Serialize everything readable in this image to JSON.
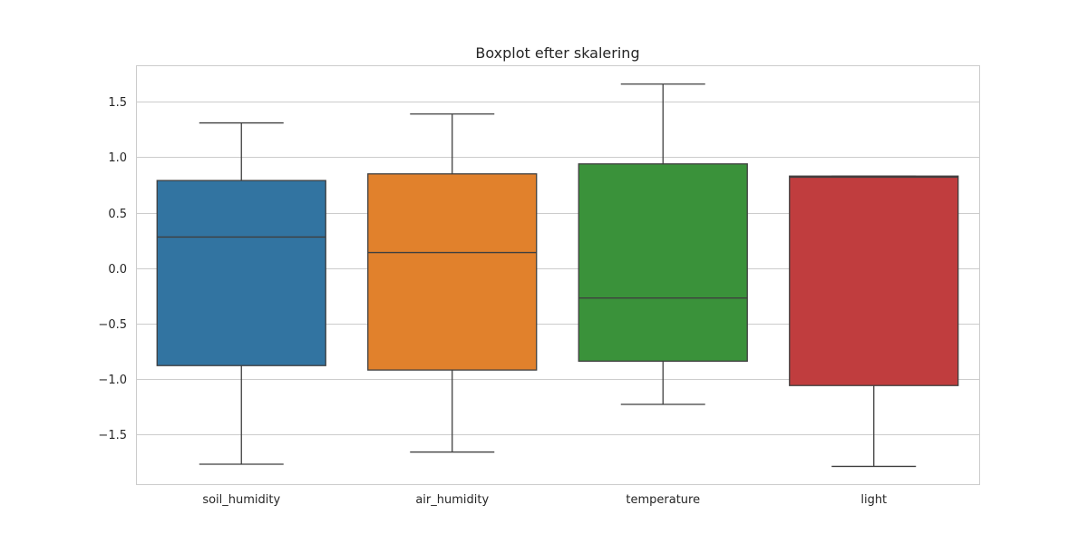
{
  "chart_data": {
    "type": "boxplot",
    "title": "Boxplot efter skalering",
    "xlabel": "",
    "ylabel": "",
    "ylim": [
      -1.95,
      1.83
    ],
    "yticks": [
      1.5,
      1.0,
      0.5,
      0.0,
      -0.5,
      -1.0,
      -1.5
    ],
    "ytick_labels": [
      "1.5",
      "1.0",
      "0.5",
      "0.0",
      "−0.5",
      "−1.0",
      "−1.5"
    ],
    "grid": true,
    "categories": [
      "soil_humidity",
      "air_humidity",
      "temperature",
      "light"
    ],
    "colors": [
      "#3274a1",
      "#e1812c",
      "#3a923a",
      "#c03d3e"
    ],
    "boxes": [
      {
        "whislo": -1.77,
        "q1": -0.88,
        "med": 0.28,
        "q3": 0.79,
        "whishi": 1.31
      },
      {
        "whislo": -1.66,
        "q1": -0.92,
        "med": 0.14,
        "q3": 0.85,
        "whishi": 1.39
      },
      {
        "whislo": -1.23,
        "q1": -0.84,
        "med": -0.27,
        "q3": 0.94,
        "whishi": 1.66
      },
      {
        "whislo": -1.79,
        "q1": -1.06,
        "med": 0.82,
        "q3": 0.83,
        "whishi": 0.83
      }
    ]
  }
}
